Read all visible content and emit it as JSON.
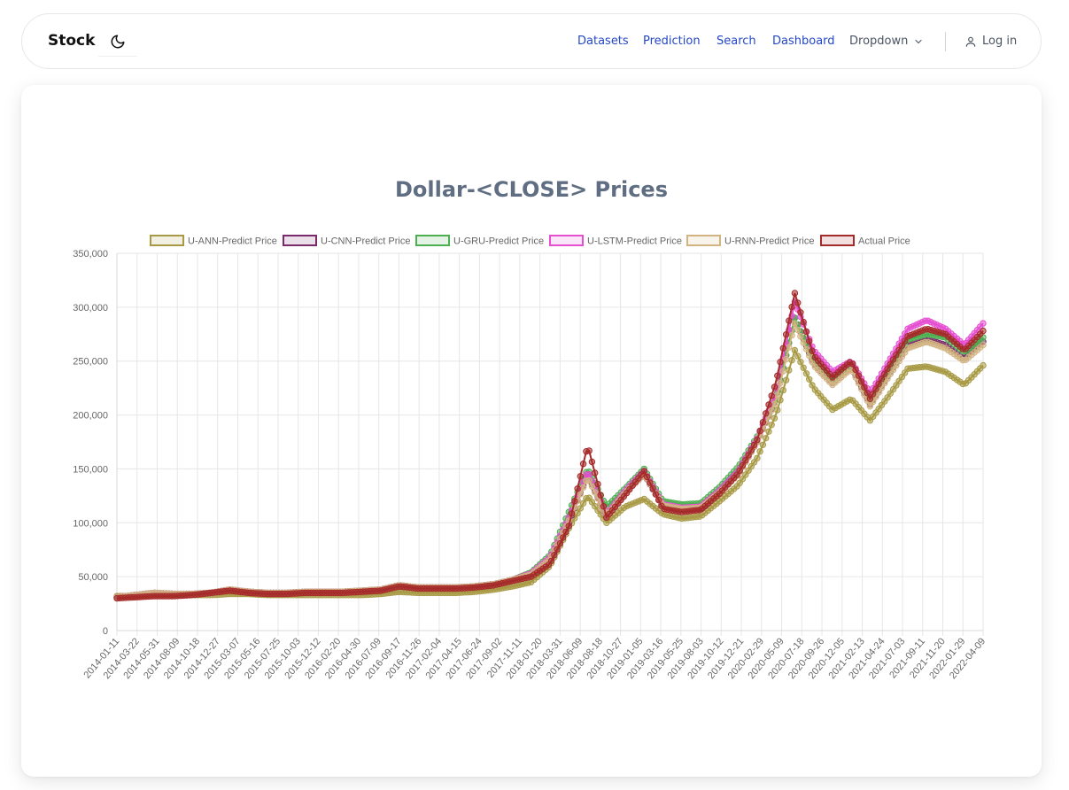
{
  "navbar": {
    "brand": "Stock",
    "links": [
      "Datasets",
      "Prediction",
      "Search",
      "Dashboard"
    ],
    "dropdown": "Dropdown",
    "login": "Log in"
  },
  "chart_data": {
    "type": "line",
    "title": "Dollar-<CLOSE> Prices",
    "xlabel": "",
    "ylabel": "",
    "ylim": [
      0,
      350000
    ],
    "y_ticks": [
      0,
      50000,
      100000,
      150000,
      200000,
      250000,
      300000,
      350000
    ],
    "y_tick_labels": [
      "0",
      "50,000",
      "100,000",
      "150,000",
      "200,000",
      "250,000",
      "300,000",
      "350,000"
    ],
    "x_tick_labels": [
      "2014-01-11",
      "2014-03-22",
      "2014-05-31",
      "2014-08-09",
      "2014-10-18",
      "2014-12-27",
      "2015-03-07",
      "2015-05-16",
      "2015-07-25",
      "2015-10-03",
      "2015-12-12",
      "2016-02-20",
      "2016-04-30",
      "2016-07-09",
      "2016-09-17",
      "2016-11-26",
      "2017-02-04",
      "2017-04-15",
      "2017-06-24",
      "2017-09-02",
      "2017-11-11",
      "2018-01-20",
      "2018-03-31",
      "2018-06-09",
      "2018-08-18",
      "2018-10-27",
      "2019-01-05",
      "2019-03-16",
      "2019-05-25",
      "2019-08-03",
      "2019-10-12",
      "2019-12-21",
      "2020-02-29",
      "2020-05-09",
      "2020-07-18",
      "2020-09-26",
      "2020-12-05",
      "2021-02-13",
      "2021-04-24",
      "2021-07-03",
      "2021-09-11",
      "2021-11-20",
      "2022-01-29",
      "2022-04-09"
    ],
    "grid": true,
    "legend_position": "top",
    "series": [
      {
        "name": "U-ANN-Predict Price",
        "color": "#a89a45",
        "values": [
          32000,
          32000,
          33000,
          33000,
          33000,
          33000,
          34000,
          34000,
          33000,
          33000,
          33000,
          33000,
          33000,
          33000,
          34000,
          36000,
          35000,
          35000,
          35000,
          36000,
          38000,
          41000,
          45000,
          60000,
          95000,
          125000,
          100000,
          115000,
          122000,
          108000,
          104000,
          106000,
          120000,
          135000,
          160000,
          200000,
          260000,
          225000,
          205000,
          215000,
          195000,
          218000,
          243000,
          245000,
          240000,
          228000,
          246000
        ]
      },
      {
        "name": "U-CNN-Predict Price",
        "color": "#7a2a6a",
        "values": [
          31000,
          33000,
          35000,
          34000,
          34000,
          35000,
          38000,
          36000,
          35000,
          35000,
          36000,
          36000,
          36000,
          37000,
          38000,
          42000,
          40000,
          40000,
          40000,
          41000,
          43000,
          47000,
          52000,
          65000,
          100000,
          145000,
          105000,
          128000,
          145000,
          115000,
          112000,
          113000,
          128000,
          145000,
          175000,
          215000,
          290000,
          248000,
          230000,
          245000,
          210000,
          238000,
          265000,
          270000,
          265000,
          252000,
          268000
        ]
      },
      {
        "name": "U-GRU-Predict Price",
        "color": "#4cb050",
        "values": [
          31000,
          33000,
          35000,
          34000,
          34000,
          35000,
          38000,
          36000,
          35000,
          35000,
          36000,
          36000,
          36000,
          37000,
          38000,
          42000,
          40000,
          40000,
          40000,
          41000,
          43000,
          47000,
          54000,
          70000,
          110000,
          150000,
          115000,
          132000,
          150000,
          120000,
          117000,
          118000,
          133000,
          152000,
          180000,
          215000,
          290000,
          250000,
          233000,
          248000,
          212000,
          242000,
          270000,
          275000,
          272000,
          258000,
          272000
        ]
      },
      {
        "name": "U-LSTM-Predict Price",
        "color": "#e64fd2",
        "values": [
          31000,
          33000,
          35000,
          34000,
          34000,
          35000,
          38000,
          36000,
          35000,
          35000,
          36000,
          36000,
          36000,
          37000,
          38000,
          42000,
          40000,
          40000,
          40000,
          41000,
          43000,
          47000,
          53000,
          68000,
          105000,
          148000,
          108000,
          130000,
          148000,
          117000,
          114000,
          115000,
          130000,
          148000,
          178000,
          220000,
          305000,
          260000,
          240000,
          250000,
          220000,
          250000,
          280000,
          288000,
          280000,
          265000,
          285000
        ]
      },
      {
        "name": "U-RNN-Predict Price",
        "color": "#d2b482",
        "values": [
          31000,
          33000,
          35000,
          34000,
          34000,
          35000,
          38000,
          36000,
          35000,
          35000,
          36000,
          36000,
          36000,
          37000,
          38000,
          42000,
          40000,
          40000,
          40000,
          41000,
          43000,
          47000,
          52000,
          66000,
          102000,
          142000,
          106000,
          128000,
          145000,
          116000,
          113000,
          114000,
          128000,
          145000,
          175000,
          213000,
          285000,
          246000,
          228000,
          243000,
          208000,
          236000,
          262000,
          268000,
          262000,
          250000,
          265000
        ]
      },
      {
        "name": "Actual Price",
        "color": "#a52a2a",
        "values": [
          30000,
          31000,
          32000,
          32000,
          33000,
          35000,
          37000,
          35000,
          34000,
          34000,
          35000,
          35000,
          35000,
          36000,
          37000,
          41000,
          39000,
          39000,
          39000,
          40000,
          42000,
          46000,
          50000,
          62000,
          97000,
          172000,
          105000,
          126000,
          148000,
          113000,
          110000,
          112000,
          127000,
          146000,
          177000,
          230000,
          313000,
          255000,
          235000,
          250000,
          215000,
          245000,
          273000,
          280000,
          275000,
          260000,
          278000
        ]
      }
    ]
  }
}
